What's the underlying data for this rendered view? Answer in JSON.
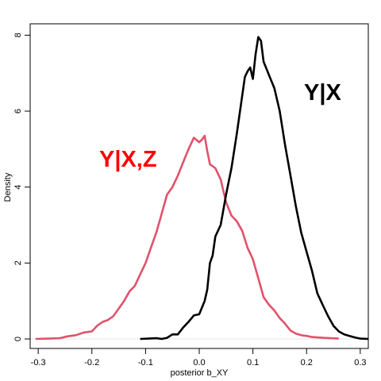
{
  "chart_data": {
    "type": "line",
    "title": "",
    "xlabel": "posterior b_XY",
    "ylabel": "Density",
    "xlim": [
      -0.315,
      0.315
    ],
    "ylim": [
      -0.25,
      8.3
    ],
    "x_ticks": [
      -0.3,
      -0.2,
      -0.1,
      0.0,
      0.1,
      0.2,
      0.3
    ],
    "x_tick_labels": [
      "-0.3",
      "-0.2",
      "-0.1",
      "0.0",
      "0.1",
      "0.2",
      "0.3"
    ],
    "y_ticks": [
      0,
      2,
      4,
      6,
      8
    ],
    "y_tick_labels": [
      "0",
      "2",
      "4",
      "6",
      "8"
    ],
    "grid": false,
    "baseline": 0,
    "series": [
      {
        "name": "Y|X,Z",
        "color": "#DF536B",
        "label_color": "#FF0000",
        "points": [
          [
            -0.305,
            0.0
          ],
          [
            -0.28,
            0.01
          ],
          [
            -0.26,
            0.02
          ],
          [
            -0.245,
            0.07
          ],
          [
            -0.23,
            0.1
          ],
          [
            -0.215,
            0.17
          ],
          [
            -0.2,
            0.2
          ],
          [
            -0.19,
            0.35
          ],
          [
            -0.18,
            0.45
          ],
          [
            -0.17,
            0.5
          ],
          [
            -0.16,
            0.6
          ],
          [
            -0.15,
            0.8
          ],
          [
            -0.14,
            1.0
          ],
          [
            -0.13,
            1.25
          ],
          [
            -0.12,
            1.4
          ],
          [
            -0.11,
            1.7
          ],
          [
            -0.1,
            2.0
          ],
          [
            -0.09,
            2.4
          ],
          [
            -0.08,
            2.8
          ],
          [
            -0.07,
            3.3
          ],
          [
            -0.06,
            3.8
          ],
          [
            -0.05,
            4.0
          ],
          [
            -0.04,
            4.3
          ],
          [
            -0.03,
            4.65
          ],
          [
            -0.02,
            5.0
          ],
          [
            -0.01,
            5.3
          ],
          [
            0.0,
            5.18
          ],
          [
            0.005,
            5.25
          ],
          [
            0.01,
            5.35
          ],
          [
            0.015,
            4.95
          ],
          [
            0.02,
            4.6
          ],
          [
            0.03,
            4.5
          ],
          [
            0.04,
            4.2
          ],
          [
            0.05,
            3.6
          ],
          [
            0.06,
            3.25
          ],
          [
            0.07,
            3.1
          ],
          [
            0.08,
            2.85
          ],
          [
            0.09,
            2.4
          ],
          [
            0.1,
            2.1
          ],
          [
            0.11,
            1.6
          ],
          [
            0.12,
            1.1
          ],
          [
            0.13,
            0.9
          ],
          [
            0.14,
            0.75
          ],
          [
            0.15,
            0.55
          ],
          [
            0.16,
            0.4
          ],
          [
            0.17,
            0.22
          ],
          [
            0.18,
            0.14
          ],
          [
            0.19,
            0.1
          ],
          [
            0.2,
            0.08
          ],
          [
            0.21,
            0.05
          ],
          [
            0.23,
            0.03
          ],
          [
            0.26,
            0.01
          ]
        ]
      },
      {
        "name": "Y|X",
        "color": "#000000",
        "label_color": "#000000",
        "points": [
          [
            -0.11,
            0.0
          ],
          [
            -0.095,
            0.01
          ],
          [
            -0.08,
            0.02
          ],
          [
            -0.07,
            0.0
          ],
          [
            -0.06,
            0.03
          ],
          [
            -0.05,
            0.12
          ],
          [
            -0.04,
            0.12
          ],
          [
            -0.03,
            0.3
          ],
          [
            -0.02,
            0.45
          ],
          [
            -0.01,
            0.62
          ],
          [
            0.0,
            0.65
          ],
          [
            0.01,
            1.0
          ],
          [
            0.015,
            1.3
          ],
          [
            0.02,
            2.0
          ],
          [
            0.025,
            2.2
          ],
          [
            0.03,
            2.7
          ],
          [
            0.04,
            3.0
          ],
          [
            0.05,
            3.8
          ],
          [
            0.06,
            4.5
          ],
          [
            0.07,
            5.4
          ],
          [
            0.08,
            6.4
          ],
          [
            0.085,
            6.9
          ],
          [
            0.09,
            7.05
          ],
          [
            0.095,
            7.15
          ],
          [
            0.1,
            6.85
          ],
          [
            0.105,
            7.5
          ],
          [
            0.11,
            7.95
          ],
          [
            0.115,
            7.85
          ],
          [
            0.12,
            7.3
          ],
          [
            0.13,
            6.95
          ],
          [
            0.14,
            6.6
          ],
          [
            0.15,
            6.0
          ],
          [
            0.16,
            5.1
          ],
          [
            0.17,
            4.3
          ],
          [
            0.18,
            3.5
          ],
          [
            0.19,
            2.8
          ],
          [
            0.2,
            2.3
          ],
          [
            0.21,
            1.8
          ],
          [
            0.22,
            1.2
          ],
          [
            0.23,
            0.9
          ],
          [
            0.24,
            0.6
          ],
          [
            0.25,
            0.35
          ],
          [
            0.26,
            0.2
          ],
          [
            0.27,
            0.12
          ],
          [
            0.28,
            0.08
          ],
          [
            0.29,
            0.04
          ],
          [
            0.3,
            0.01
          ],
          [
            0.315,
            0.0
          ]
        ]
      }
    ]
  }
}
